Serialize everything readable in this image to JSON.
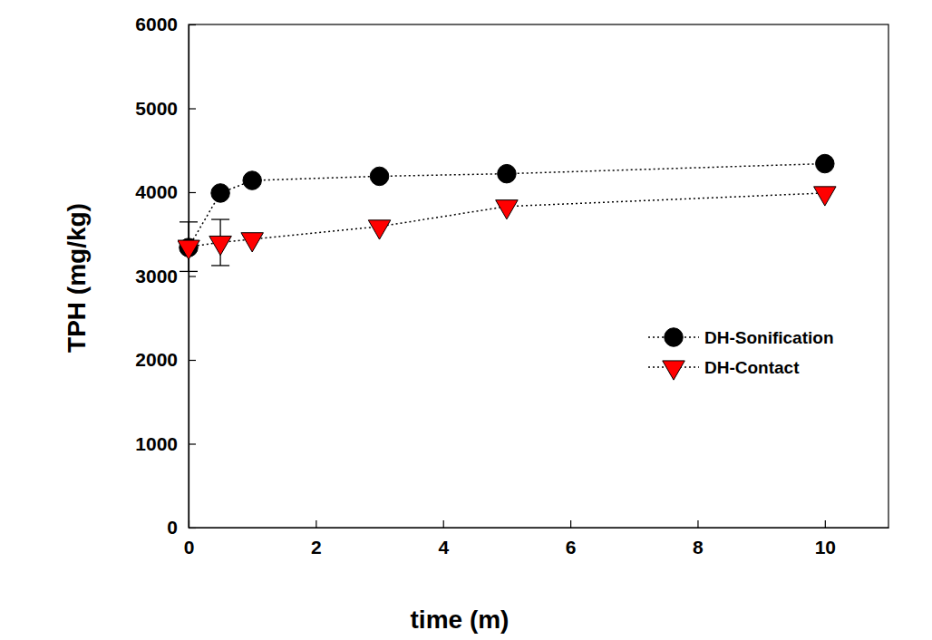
{
  "chart_data": {
    "type": "line",
    "x_label": "time (m)",
    "y_label": "TPH (mg/kg)",
    "x": [
      0,
      0.5,
      1,
      3,
      5,
      10
    ],
    "series": [
      {
        "name": "DH-Sonification",
        "color": "#000000",
        "marker": "circle",
        "line_style": "dotted",
        "values": [
          3340,
          3990,
          4140,
          4190,
          4220,
          4340
        ]
      },
      {
        "name": "DH-Contact",
        "color": "#ff0000",
        "marker": "triangle-down",
        "line_style": "dotted",
        "values": [
          3350,
          3400,
          3440,
          3590,
          3830,
          3990
        ],
        "error": [
          295,
          275,
          null,
          null,
          null,
          null
        ]
      }
    ],
    "xlim": [
      0,
      11
    ],
    "xticks": [
      0,
      2,
      4,
      6,
      8,
      10
    ],
    "ylim": [
      0,
      6000
    ],
    "yticks": [
      0,
      1000,
      2000,
      3000,
      4000,
      5000,
      6000
    ],
    "grid": false,
    "legend": "right"
  }
}
